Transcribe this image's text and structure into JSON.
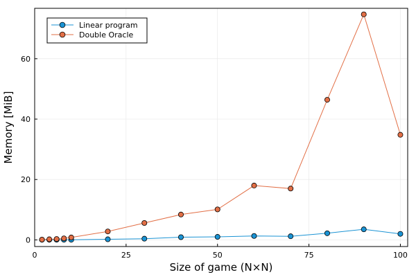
{
  "chart_data": {
    "type": "line",
    "title": "",
    "xlabel": "Size of game (N×N)",
    "ylabel": "Memory [MiB]",
    "xlim": [
      0,
      102
    ],
    "ylim": [
      -2.2,
      76.7
    ],
    "xticks": [
      0,
      25,
      50,
      75,
      100
    ],
    "yticks": [
      0,
      20,
      40,
      60
    ],
    "grid": true,
    "legend_position": "top-left",
    "series": [
      {
        "name": "Linear program",
        "color": "#1a93d4",
        "marker": "circle",
        "x": [
          2,
          4,
          6,
          8,
          10,
          20,
          30,
          40,
          50,
          60,
          70,
          80,
          90,
          100
        ],
        "y": [
          0.05,
          0.05,
          0.05,
          0.05,
          0.05,
          0.2,
          0.4,
          0.9,
          1.0,
          1.3,
          1.2,
          2.2,
          3.5,
          2.0
        ]
      },
      {
        "name": "Double Oracle",
        "color": "#e26f46",
        "marker": "circle",
        "x": [
          2,
          4,
          6,
          8,
          10,
          20,
          30,
          40,
          50,
          60,
          70,
          80,
          90,
          100
        ],
        "y": [
          0.1,
          0.2,
          0.3,
          0.5,
          0.8,
          2.8,
          5.6,
          8.4,
          10.1,
          18.0,
          17.0,
          46.4,
          74.7,
          34.8
        ]
      }
    ]
  }
}
